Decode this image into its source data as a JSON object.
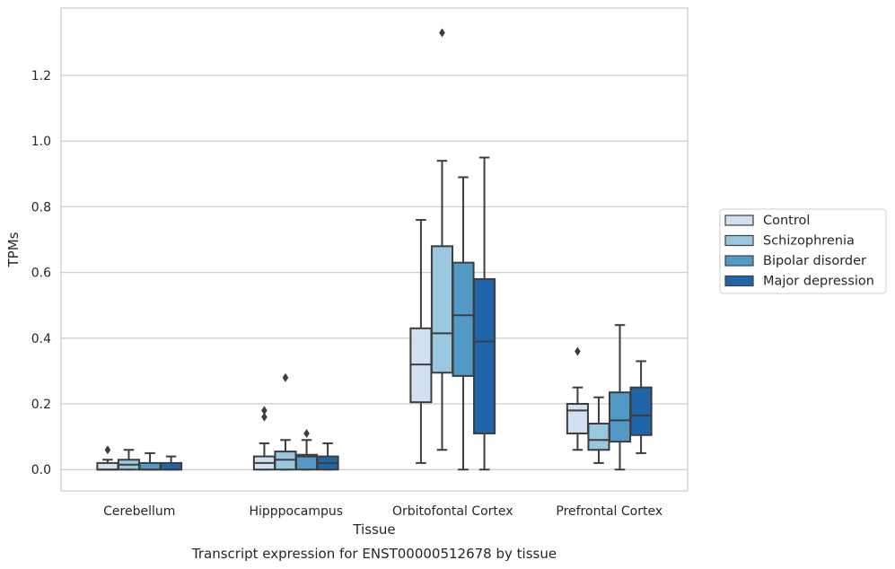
{
  "chart_data": {
    "type": "box",
    "title": "Transcript expression for ENST00000512678 by tissue",
    "xlabel": "Tissue",
    "ylabel": "TPMs",
    "ylim": [
      -0.065,
      1.405
    ],
    "yticks": [
      0.0,
      0.2,
      0.4,
      0.6,
      0.8,
      1.0,
      1.2
    ],
    "ytick_labels": [
      "0.0",
      "0.2",
      "0.4",
      "0.6",
      "0.8",
      "1.0",
      "1.2"
    ],
    "grid": "horizontal",
    "legend_position": "right",
    "categories": [
      "Cerebellum",
      "Hipppocampus",
      "Orbitofontal Cortex",
      "Prefrontal Cortex"
    ],
    "series": [
      {
        "name": "Control",
        "color": "#d1e1ef",
        "boxes": [
          {
            "whislo": 0.0,
            "q1": 0.0,
            "med": 0.0,
            "q3": 0.02,
            "whishi": 0.03,
            "fliers": [
              0.06
            ]
          },
          {
            "whislo": 0.0,
            "q1": 0.0,
            "med": 0.02,
            "q3": 0.04,
            "whishi": 0.08,
            "fliers": [
              0.16,
              0.18
            ]
          },
          {
            "whislo": 0.02,
            "q1": 0.205,
            "med": 0.32,
            "q3": 0.43,
            "whishi": 0.76,
            "fliers": []
          },
          {
            "whislo": 0.06,
            "q1": 0.11,
            "med": 0.18,
            "q3": 0.2,
            "whishi": 0.25,
            "fliers": [
              0.36
            ]
          }
        ]
      },
      {
        "name": "Schizophrenia",
        "color": "#9ac6df",
        "boxes": [
          {
            "whislo": 0.0,
            "q1": 0.0,
            "med": 0.015,
            "q3": 0.03,
            "whishi": 0.06,
            "fliers": []
          },
          {
            "whislo": 0.0,
            "q1": 0.0,
            "med": 0.03,
            "q3": 0.055,
            "whishi": 0.09,
            "fliers": [
              0.28
            ]
          },
          {
            "whislo": 0.06,
            "q1": 0.295,
            "med": 0.415,
            "q3": 0.68,
            "whishi": 0.94,
            "fliers": [
              1.33
            ]
          },
          {
            "whislo": 0.02,
            "q1": 0.06,
            "med": 0.09,
            "q3": 0.14,
            "whishi": 0.22,
            "fliers": []
          }
        ]
      },
      {
        "name": "Bipolar disorder",
        "color": "#5399c6",
        "boxes": [
          {
            "whislo": 0.0,
            "q1": 0.0,
            "med": 0.0,
            "q3": 0.02,
            "whishi": 0.05,
            "fliers": []
          },
          {
            "whislo": 0.0,
            "q1": 0.0,
            "med": 0.04,
            "q3": 0.045,
            "whishi": 0.09,
            "fliers": [
              0.11
            ]
          },
          {
            "whislo": 0.0,
            "q1": 0.285,
            "med": 0.47,
            "q3": 0.63,
            "whishi": 0.89,
            "fliers": []
          },
          {
            "whislo": 0.0,
            "q1": 0.085,
            "med": 0.15,
            "q3": 0.235,
            "whishi": 0.44,
            "fliers": []
          }
        ]
      },
      {
        "name": "Major depression",
        "color": "#2165a9",
        "boxes": [
          {
            "whislo": 0.0,
            "q1": 0.0,
            "med": 0.0,
            "q3": 0.02,
            "whishi": 0.04,
            "fliers": []
          },
          {
            "whislo": 0.0,
            "q1": 0.0,
            "med": 0.02,
            "q3": 0.04,
            "whishi": 0.08,
            "fliers": []
          },
          {
            "whislo": 0.0,
            "q1": 0.11,
            "med": 0.39,
            "q3": 0.58,
            "whishi": 0.95,
            "fliers": []
          },
          {
            "whislo": 0.05,
            "q1": 0.105,
            "med": 0.165,
            "q3": 0.25,
            "whishi": 0.33,
            "fliers": []
          }
        ]
      }
    ]
  }
}
